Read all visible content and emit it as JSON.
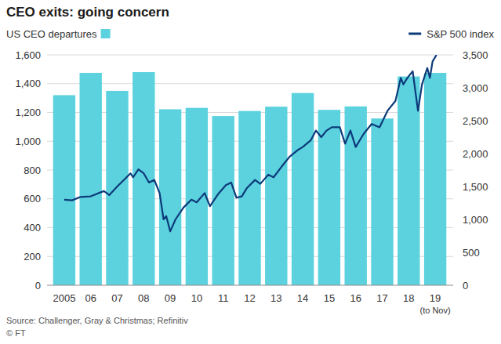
{
  "chart_data": {
    "type": "bar",
    "title": "CEO exits: going concern",
    "categories": [
      "2005",
      "06",
      "07",
      "08",
      "09",
      "10",
      "11",
      "12",
      "13",
      "14",
      "15",
      "16",
      "17",
      "18",
      "19"
    ],
    "series": [
      {
        "name": "US CEO departures",
        "type": "bar",
        "color": "#5bd2de",
        "values": [
          1320,
          1475,
          1350,
          1480,
          1222,
          1232,
          1175,
          1210,
          1240,
          1335,
          1218,
          1242,
          1158,
          1450,
          1475
        ]
      },
      {
        "name": "S&P 500 index",
        "type": "line",
        "axis": "y2",
        "color": "#0d3a7a",
        "x": [
          2005.0,
          2005.3,
          2005.6,
          2006.0,
          2006.3,
          2006.5,
          2006.7,
          2007.0,
          2007.3,
          2007.5,
          2007.6,
          2007.8,
          2008.0,
          2008.2,
          2008.4,
          2008.6,
          2008.75,
          2008.85,
          2009.0,
          2009.2,
          2009.5,
          2009.8,
          2010.0,
          2010.3,
          2010.5,
          2010.8,
          2011.1,
          2011.3,
          2011.5,
          2011.7,
          2011.9,
          2012.2,
          2012.4,
          2012.7,
          2012.9,
          2013.2,
          2013.5,
          2013.8,
          2014.0,
          2014.3,
          2014.5,
          2014.7,
          2014.9,
          2015.1,
          2015.4,
          2015.6,
          2015.8,
          2016.0,
          2016.3,
          2016.6,
          2016.9,
          2017.2,
          2017.5,
          2017.7,
          2017.8,
          2017.95,
          2018.15,
          2018.35,
          2018.5,
          2018.7,
          2018.8,
          2018.9,
          2019.05
        ],
        "values": [
          1300,
          1290,
          1340,
          1350,
          1400,
          1430,
          1370,
          1500,
          1620,
          1700,
          1640,
          1760,
          1700,
          1560,
          1600,
          1400,
          1000,
          1050,
          820,
          1000,
          1180,
          1300,
          1260,
          1400,
          1200,
          1380,
          1520,
          1560,
          1330,
          1350,
          1480,
          1600,
          1540,
          1680,
          1640,
          1800,
          1950,
          2050,
          2100,
          2200,
          2350,
          2250,
          2350,
          2400,
          2400,
          2150,
          2350,
          2100,
          2300,
          2450,
          2400,
          2650,
          2800,
          3150,
          3050,
          3150,
          3250,
          2650,
          3050,
          3300,
          3150,
          3400,
          3500
        ]
      }
    ],
    "xlim": [
      2004.5,
      2019.5
    ],
    "ylim": [
      0,
      1600
    ],
    "yticks": [
      0,
      200,
      400,
      600,
      800,
      {
        "value": 1000,
        "label": "1,000"
      },
      {
        "value": 1200,
        "label": "1,200"
      },
      {
        "value": 1400,
        "label": "1,400"
      },
      {
        "value": 1600,
        "label": "1,600"
      }
    ],
    "y2lim": [
      0,
      3500
    ],
    "y2ticks": [
      0,
      500,
      {
        "value": 1000,
        "label": "1,000"
      },
      {
        "value": 1500,
        "label": "1,500"
      },
      {
        "value": 2000,
        "label": "2,000"
      },
      {
        "value": 2500,
        "label": "2,500"
      },
      {
        "value": 3000,
        "label": "3,000"
      },
      {
        "value": 3500,
        "label": "3,500"
      }
    ],
    "grid": true,
    "legend": "top",
    "annotations": [
      {
        "text": "(to Nov)",
        "category": "19"
      }
    ],
    "source": "Source: Challenger, Gray & Christmas; Refinitiv",
    "credit": "© FT"
  }
}
